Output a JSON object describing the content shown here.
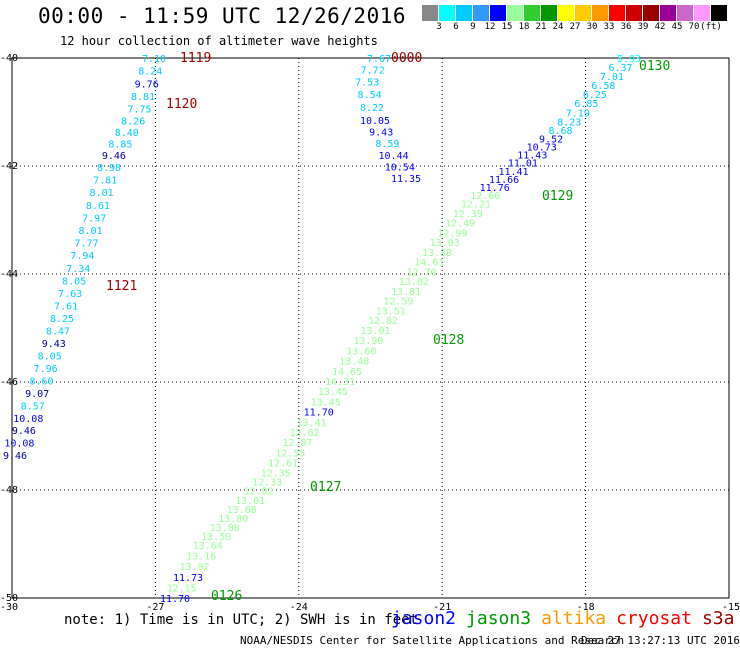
{
  "header": {
    "title": "00:00 - 11:59 UTC 12/26/2016",
    "subtitle": "12 hour collection of altimeter wave heights"
  },
  "legend": {
    "colors": [
      "#888888",
      "#00ffff",
      "#00ccff",
      "#3399ff",
      "#0000ff",
      "#99ff99",
      "#33cc33",
      "#009900",
      "#ffff00",
      "#ffcc00",
      "#ff9900",
      "#ff0000",
      "#cc0000",
      "#990000",
      "#990099",
      "#cc66cc",
      "#ff99ff",
      "#000000"
    ],
    "labels": [
      "3",
      "6",
      "9",
      "12",
      "15",
      "18",
      "21",
      "24",
      "27",
      "30",
      "33",
      "36",
      "39",
      "42",
      "45",
      "70"
    ],
    "unit": "(ft)"
  },
  "axes": {
    "lat_labels": [
      "-40",
      "-42",
      "-44",
      "-46",
      "-48",
      "-50"
    ],
    "lon_labels": [
      "-30",
      "-27",
      "-24",
      "-21",
      "-18",
      "-15"
    ]
  },
  "tracks": [
    {
      "satellite": "jason3",
      "obs": [
        {
          "t": "7.10",
          "c": "#00ccff"
        },
        {
          "t": "8.24",
          "c": "#00ccff"
        },
        {
          "t": "9.76",
          "c": "#0000ff"
        },
        {
          "t": "8.81",
          "c": "#00ccff"
        },
        {
          "t": "7.75",
          "c": "#00ccff"
        },
        {
          "t": "8.26",
          "c": "#00ccff"
        },
        {
          "t": "8.40",
          "c": "#00ccff"
        },
        {
          "t": "8.85",
          "c": "#00ccff"
        },
        {
          "t": "9.46",
          "c": "#000099"
        },
        {
          "t": "8.98",
          "c": "#00ccff"
        },
        {
          "t": "7.81",
          "c": "#00ccff"
        },
        {
          "t": "8.01",
          "c": "#00ccff"
        },
        {
          "t": "8.61",
          "c": "#00ccff"
        },
        {
          "t": "7.97",
          "c": "#00ccff"
        },
        {
          "t": "8.01",
          "c": "#00ccff"
        },
        {
          "t": "7.77",
          "c": "#00ccff"
        },
        {
          "t": "7.94",
          "c": "#00ccff"
        },
        {
          "t": "7.34",
          "c": "#00ccff"
        },
        {
          "t": "8.05",
          "c": "#00ccff"
        },
        {
          "t": "7.63",
          "c": "#00ccff"
        },
        {
          "t": "7.61",
          "c": "#00ccff"
        },
        {
          "t": "8.25",
          "c": "#00ccff"
        },
        {
          "t": "8.47",
          "c": "#00ccff"
        },
        {
          "t": "9.43",
          "c": "#000099"
        },
        {
          "t": "8.05",
          "c": "#00ccff"
        },
        {
          "t": "7.96",
          "c": "#00ccff"
        },
        {
          "t": "8.60",
          "c": "#00ccff"
        },
        {
          "t": "9.07",
          "c": "#000099"
        },
        {
          "t": "8.57",
          "c": "#00ccff"
        },
        {
          "t": "10.08",
          "c": "#0000ff"
        },
        {
          "t": "9.46",
          "c": "#000099"
        },
        {
          "t": "10.08",
          "c": "#0000ff"
        },
        {
          "t": "9.46",
          "c": "#000099"
        }
      ],
      "times": [
        "1119",
        "1120",
        "1121"
      ]
    },
    {
      "satellite": "jason3",
      "obs": [
        {
          "t": "7.67",
          "c": "#00ccff"
        },
        {
          "t": "7.72",
          "c": "#00ccff"
        },
        {
          "t": "7.53",
          "c": "#00ccff"
        },
        {
          "t": "8.54",
          "c": "#00ccff"
        },
        {
          "t": "8.22",
          "c": "#00ccff"
        },
        {
          "t": "10.05",
          "c": "#0000ff"
        },
        {
          "t": "9.43",
          "c": "#0000ff"
        },
        {
          "t": "8.59",
          "c": "#00ccff"
        },
        {
          "t": "10.44",
          "c": "#0000ff"
        },
        {
          "t": "10.54",
          "c": "#0000ff"
        },
        {
          "t": "11.35",
          "c": "#0000ff"
        }
      ],
      "times": [
        "0000"
      ]
    },
    {
      "satellite": "jason3",
      "obs": [
        {
          "t": "11.70",
          "c": "#0000ff"
        },
        {
          "t": "12.15",
          "c": "#99ff99"
        },
        {
          "t": "11.73",
          "c": "#0000ff"
        },
        {
          "t": "13.02",
          "c": "#99ff99"
        },
        {
          "t": "13.16",
          "c": "#99ff99"
        },
        {
          "t": "13.64",
          "c": "#99ff99"
        },
        {
          "t": "13.50",
          "c": "#99ff99"
        },
        {
          "t": "13.88",
          "c": "#99ff99"
        },
        {
          "t": "13.80",
          "c": "#99ff99"
        },
        {
          "t": "13.68",
          "c": "#99ff99"
        },
        {
          "t": "13.01",
          "c": "#99ff99"
        },
        {
          "t": "12.82",
          "c": "#99ff99"
        },
        {
          "t": "12.33",
          "c": "#99ff99"
        },
        {
          "t": "12.35",
          "c": "#99ff99"
        },
        {
          "t": "12.61",
          "c": "#99ff99"
        },
        {
          "t": "12.55",
          "c": "#99ff99"
        },
        {
          "t": "12.87",
          "c": "#99ff99"
        },
        {
          "t": "12.62",
          "c": "#99ff99"
        },
        {
          "t": "13.41",
          "c": "#99ff99"
        },
        {
          "t": "11.70",
          "c": "#0000ff"
        },
        {
          "t": "13.45",
          "c": "#99ff99"
        },
        {
          "t": "13.45",
          "c": "#99ff99"
        },
        {
          "t": "14.31",
          "c": "#99ff99"
        },
        {
          "t": "14.65",
          "c": "#99ff99"
        },
        {
          "t": "13.48",
          "c": "#99ff99"
        },
        {
          "t": "13.60",
          "c": "#99ff99"
        },
        {
          "t": "13.90",
          "c": "#99ff99"
        },
        {
          "t": "13.01",
          "c": "#99ff99"
        },
        {
          "t": "12.82",
          "c": "#99ff99"
        },
        {
          "t": "13.51",
          "c": "#99ff99"
        },
        {
          "t": "12.59",
          "c": "#99ff99"
        },
        {
          "t": "13.81",
          "c": "#99ff99"
        },
        {
          "t": "13.82",
          "c": "#99ff99"
        },
        {
          "t": "12.70",
          "c": "#99ff99"
        },
        {
          "t": "14.61",
          "c": "#99ff99"
        },
        {
          "t": "13.38",
          "c": "#99ff99"
        },
        {
          "t": "13.03",
          "c": "#99ff99"
        },
        {
          "t": "12.99",
          "c": "#99ff99"
        },
        {
          "t": "12.49",
          "c": "#99ff99"
        },
        {
          "t": "12.39",
          "c": "#99ff99"
        },
        {
          "t": "12.21",
          "c": "#99ff99"
        },
        {
          "t": "12.60",
          "c": "#99ff99"
        },
        {
          "t": "11.76",
          "c": "#0000ff"
        },
        {
          "t": "11.66",
          "c": "#0000ff"
        },
        {
          "t": "11.41",
          "c": "#0000ff"
        },
        {
          "t": "11.01",
          "c": "#0000ff"
        },
        {
          "t": "11.43",
          "c": "#0000ff"
        },
        {
          "t": "10.73",
          "c": "#0000ff"
        },
        {
          "t": "9.52",
          "c": "#0000ff"
        },
        {
          "t": "8.68",
          "c": "#00ccff"
        },
        {
          "t": "8.23",
          "c": "#00ccff"
        },
        {
          "t": "7.19",
          "c": "#00ccff"
        },
        {
          "t": "6.85",
          "c": "#00ccff"
        },
        {
          "t": "6.25",
          "c": "#00ccff"
        },
        {
          "t": "6.58",
          "c": "#00ccff"
        },
        {
          "t": "7.01",
          "c": "#00ccff"
        },
        {
          "t": "6.37",
          "c": "#00ccff"
        },
        {
          "t": "5.93",
          "c": "#00ffff"
        }
      ],
      "times": [
        "0126",
        "0127",
        "0128",
        "0129",
        "0130"
      ]
    }
  ],
  "note": "note: 1) Time is in UTC; 2) SWH is in feet",
  "satellites": [
    {
      "name": "jason2",
      "color": "#0000ff"
    },
    {
      "name": "jason3",
      "color": "#009900"
    },
    {
      "name": "altika",
      "color": "#ff9900"
    },
    {
      "name": "cryosat",
      "color": "#ff0000"
    },
    {
      "name": "s3a",
      "color": "#990000"
    }
  ],
  "footer": {
    "left": "NOAA/NESDIS Center for Satellite Applications and Research",
    "right": "Dec 27 13:27:13 UTC 2016"
  }
}
